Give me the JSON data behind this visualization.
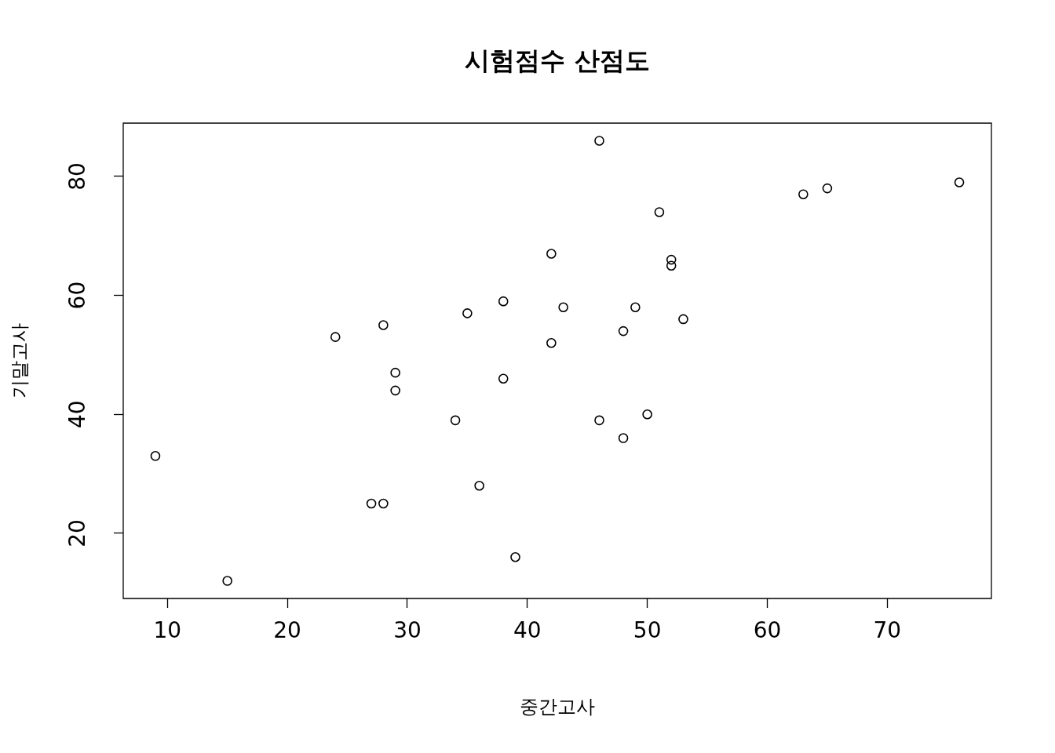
{
  "chart_data": {
    "type": "scatter",
    "title": "시험점수 산점도",
    "xlabel": "중간고사",
    "ylabel": "기말고사",
    "marker": "circle",
    "grid": false,
    "legend": false,
    "series": [
      {
        "color": "#000000",
        "x": [
          9,
          15,
          24,
          28,
          27,
          28,
          29,
          29,
          34,
          35,
          36,
          38,
          38,
          39,
          42,
          42,
          43,
          46,
          46,
          48,
          48,
          49,
          50,
          51,
          52,
          52,
          53,
          63,
          65,
          76
        ],
        "values": [
          33,
          12,
          53,
          55,
          25,
          25,
          47,
          44,
          39,
          57,
          28,
          59,
          46,
          16,
          67,
          52,
          58,
          86,
          39,
          54,
          36,
          58,
          40,
          74,
          66,
          65,
          56,
          77,
          78,
          79
        ]
      }
    ],
    "xlim": [
      6.32,
      78.68
    ],
    "xticks": [
      10,
      20,
      30,
      40,
      50,
      60,
      70
    ],
    "ylim": [
      9.04,
      88.96
    ],
    "yticks": [
      20,
      40,
      60,
      80
    ]
  }
}
